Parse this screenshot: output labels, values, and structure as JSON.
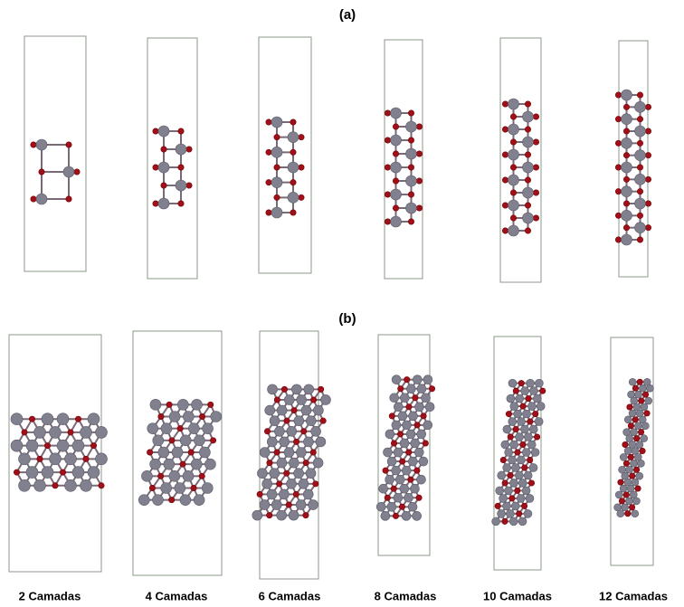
{
  "panels": [
    {
      "label": "(a)"
    },
    {
      "label": "(b)"
    }
  ],
  "captions": [
    "2 Camadas",
    "4 Camadas",
    "6 Camadas",
    "8 Camadas",
    "10 Camadas",
    "12 Camadas"
  ]
}
